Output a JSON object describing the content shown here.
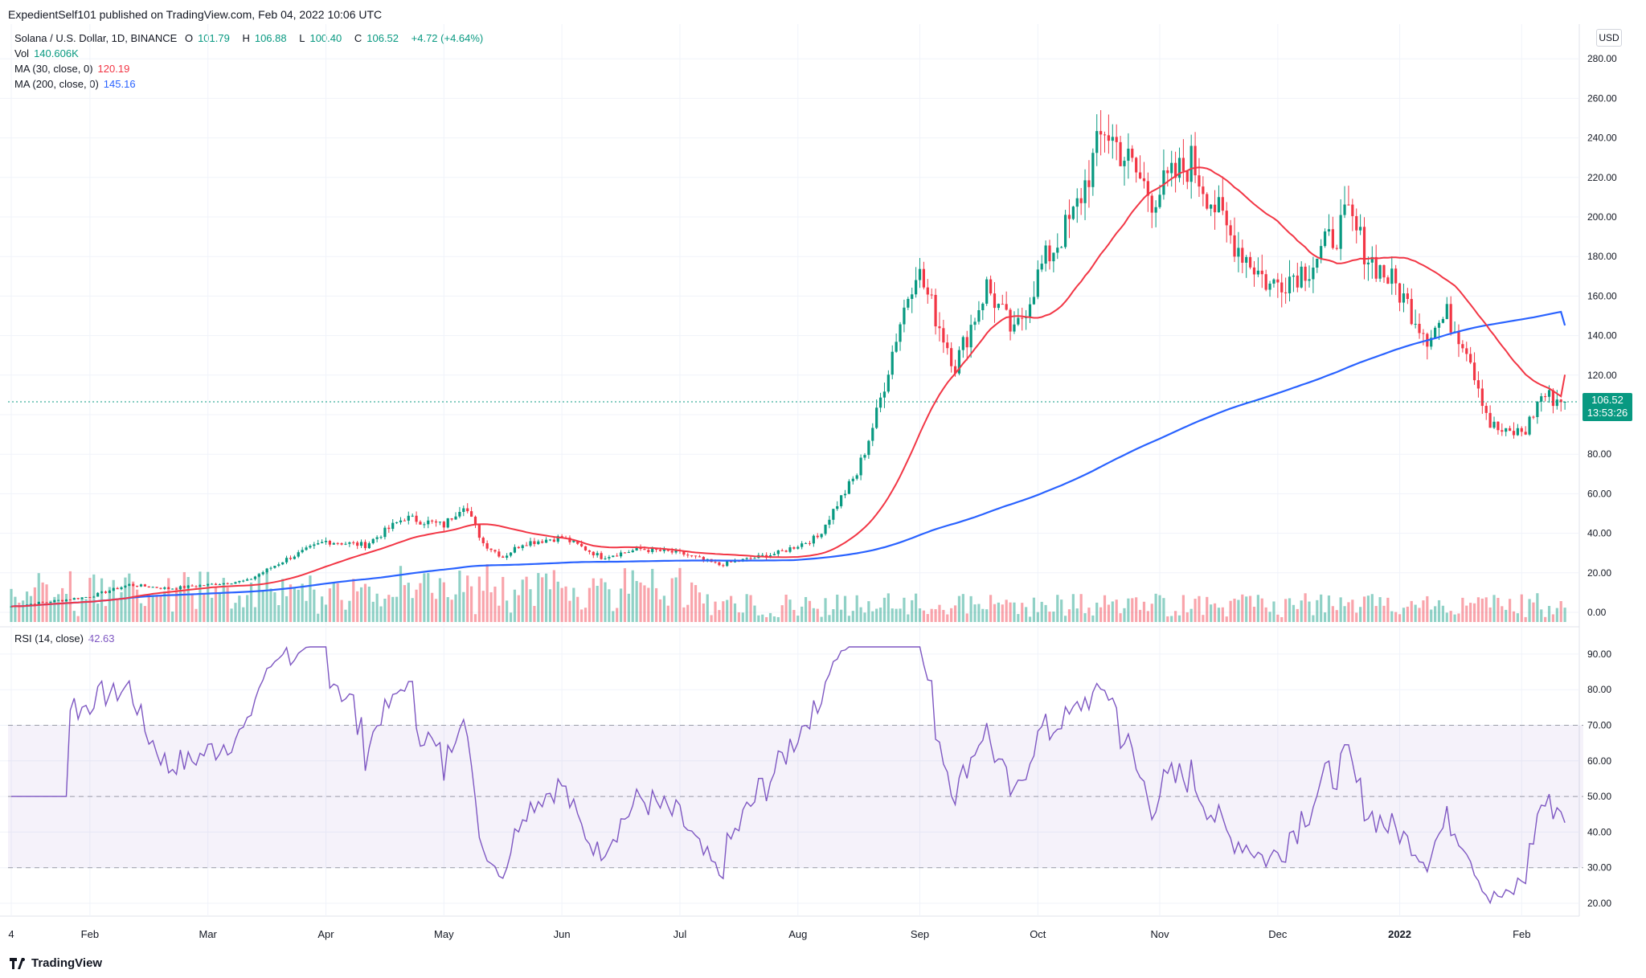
{
  "header": {
    "publish_line": "ExpedientSelf101 published on TradingView.com, Feb 04, 2022 10:06 UTC"
  },
  "legend": {
    "symbol": "Solana / U.S. Dollar, 1D, BINANCE",
    "o_label": "O",
    "o_value": "101.79",
    "h_label": "H",
    "h_value": "106.88",
    "l_label": "L",
    "l_value": "100.40",
    "c_label": "C",
    "c_value": "106.52",
    "change": "+4.72 (+4.64%)",
    "vol_label": "Vol",
    "vol_value": "140.606K",
    "ma30_label": "MA (30, close, 0)",
    "ma30_value": "120.19",
    "ma200_label": "MA (200, close, 0)",
    "ma200_value": "145.16"
  },
  "rsi": {
    "label": "RSI (14, close)",
    "value": "42.63"
  },
  "currency_button": "USD",
  "price_badge": {
    "price": "106.52",
    "countdown": "13:53:26"
  },
  "brand": "TradingView",
  "colors": {
    "up": "#089981",
    "down": "#f23645",
    "ma30": "#f23645",
    "ma200": "#2962ff",
    "rsi": "#7e57c2",
    "rsi_band": "#7e57c2"
  },
  "chart_data": [
    {
      "type": "candlestick",
      "title": "Solana / U.S. Dollar, 1D, BINANCE",
      "price_axis_ticks": [
        "280.00",
        "260.00",
        "240.00",
        "220.00",
        "200.00",
        "180.00",
        "160.00",
        "140.00",
        "120.00",
        "100.00",
        "80.00",
        "60.00",
        "40.00",
        "20.00",
        "0.00"
      ],
      "ylim": [
        0,
        290
      ],
      "time_axis_labels": [
        "4",
        "Feb",
        "Mar",
        "Apr",
        "May",
        "Jun",
        "Jul",
        "Aug",
        "Sep",
        "Oct",
        "Nov",
        "Dec",
        "2022",
        "Feb"
      ],
      "last_price": 106.52,
      "price_anchors": {
        "date_index": [
          0,
          20,
          30,
          40,
          50,
          60,
          70,
          80,
          90,
          100,
          110,
          115,
          120,
          125,
          130,
          140,
          150,
          160,
          170,
          180,
          195,
          205,
          210,
          215,
          220,
          225,
          230,
          235,
          240,
          248,
          255,
          262,
          270,
          278,
          285,
          290,
          300,
          310,
          320,
          330,
          340,
          345,
          352,
          360,
          365,
          370,
          376,
          380,
          385,
          389,
          395
        ],
        "close": [
          3,
          8,
          14,
          12,
          14,
          16,
          27,
          36,
          34,
          48,
          44,
          55,
          35,
          28,
          35,
          38,
          28,
          32,
          30,
          24,
          30,
          38,
          55,
          70,
          100,
          140,
          175,
          150,
          125,
          165,
          140,
          175,
          200,
          245,
          225,
          210,
          228,
          190,
          165,
          175,
          200,
          180,
          165,
          140,
          150,
          135,
          95,
          90,
          92,
          110,
          106.52
        ]
      },
      "ma30": {
        "name": "MA (30, close, 0)",
        "last": 120.19
      },
      "ma200": {
        "name": "MA (200, close, 0)",
        "last": 145.16
      },
      "volume": {
        "label": "Vol",
        "last": "140.606K"
      }
    },
    {
      "type": "line",
      "title": "RSI (14, close)",
      "axis_ticks": [
        "90.00",
        "80.00",
        "70.00",
        "60.00",
        "50.00",
        "40.00",
        "30.00",
        "20.00"
      ],
      "ylim": [
        15,
        95
      ],
      "bands": {
        "upper": 70,
        "middle": 50,
        "lower": 30
      },
      "last_value": 42.63
    }
  ]
}
